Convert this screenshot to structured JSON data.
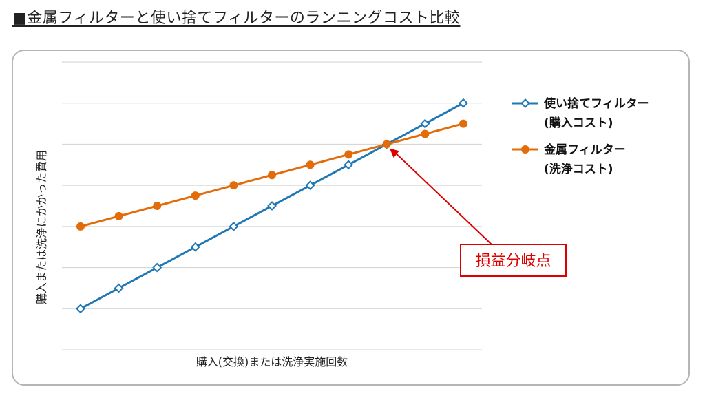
{
  "title": "■金属フィルターと使い捨てフィルターのランニングコスト比較",
  "chart_data": {
    "type": "line",
    "title": "金属フィルターと使い捨てフィルターのランニングコスト比較",
    "xlabel": "購入(交換)または洗浄実施回数",
    "ylabel": "購入または洗浄にかかった費用",
    "x": [
      1,
      2,
      3,
      4,
      5,
      6,
      7,
      8,
      9,
      10,
      11
    ],
    "ylim": [
      0,
      7
    ],
    "grid": true,
    "series": [
      {
        "name": "使い捨てフィルター",
        "legend_lines": [
          "使い捨てフィルター",
          "(購入コスト)"
        ],
        "color": "#1f77b4",
        "marker": "diamond-open",
        "values": [
          1.0,
          1.5,
          2.0,
          2.5,
          3.0,
          3.5,
          4.0,
          4.5,
          5.0,
          5.5,
          6.0
        ]
      },
      {
        "name": "金属フィルター",
        "legend_lines": [
          "金属フィルター",
          "(洗浄コスト)"
        ],
        "color": "#e36c0a",
        "marker": "circle-filled",
        "values": [
          3.0,
          3.25,
          3.5,
          3.75,
          4.0,
          4.25,
          4.5,
          4.75,
          5.0,
          5.25,
          5.5
        ]
      }
    ],
    "annotations": [
      {
        "text": "損益分岐点",
        "x": 9,
        "y": 5.0,
        "color": "#dd0000"
      }
    ]
  }
}
